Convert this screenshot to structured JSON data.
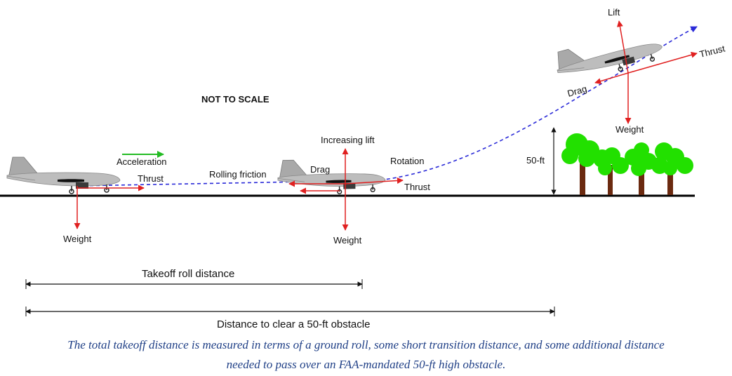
{
  "labels": {
    "not_to_scale": "NOT TO SCALE",
    "acceleration": "Acceleration",
    "thrust": "Thrust",
    "rolling_friction": "Rolling friction",
    "weight": "Weight",
    "increasing_lift": "Increasing lift",
    "drag": "Drag",
    "rotation": "Rotation",
    "lift": "Lift",
    "obstacle_height": "50-ft",
    "takeoff_roll_distance": "Takeoff roll distance",
    "clear_obstacle_distance": "Distance to clear a 50-ft obstacle"
  },
  "caption": {
    "line1": "The total takeoff distance is measured in terms of a ground roll, some short transition distance, and some additional distance",
    "line2": "needed to pass over an FAA-mandated 50-ft high obstacle."
  },
  "colors": {
    "force_arrow": "#e02020",
    "acceleration_arrow": "#22bb22",
    "flight_path": "#2a2ad8",
    "tree_foliage": "#22e000",
    "tree_trunk": "#6b2a10",
    "aircraft_body": "#b8b8b8",
    "caption_text": "#1f3f86"
  }
}
